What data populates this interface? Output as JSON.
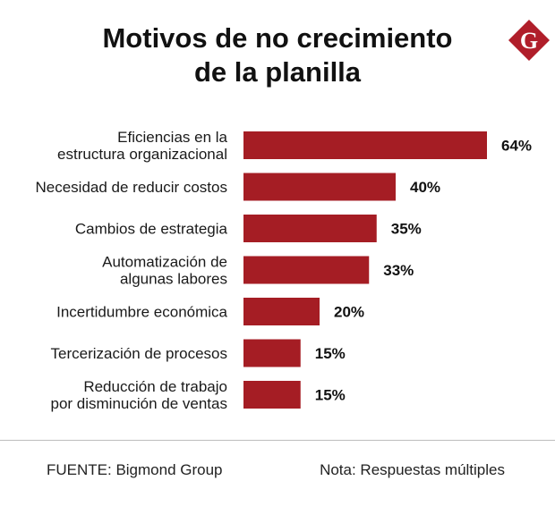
{
  "brand": {
    "logo_letter": "G",
    "color": "#b01e2a"
  },
  "chart_data": {
    "type": "bar",
    "orientation": "horizontal",
    "title": [
      "Motivos de no crecimiento",
      "de la planilla"
    ],
    "unit": "%",
    "bar_color": "#a51d24",
    "xlim": [
      0,
      64
    ],
    "categories": [
      [
        "Eficiencias en la",
        "estructura organizacional"
      ],
      [
        "Necesidad de reducir costos"
      ],
      [
        "Cambios de estrategia"
      ],
      [
        "Automatización de",
        "algunas labores"
      ],
      [
        "Incertidumbre económica"
      ],
      [
        "Tercerización de procesos"
      ],
      [
        "Reducción de trabajo",
        "por disminución de ventas"
      ]
    ],
    "values": [
      64,
      40,
      35,
      33,
      20,
      15,
      15
    ],
    "value_labels": [
      "64%",
      "40%",
      "35%",
      "33%",
      "20%",
      "15%",
      "15%"
    ]
  },
  "footer": {
    "source": "FUENTE: Bigmond Group",
    "note": "Nota: Respuestas múltiples"
  }
}
